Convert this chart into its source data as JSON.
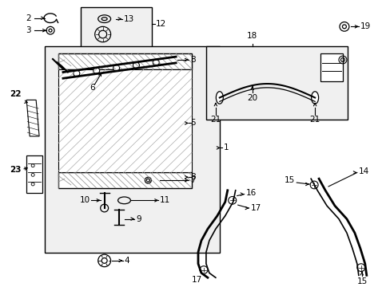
{
  "bg_color": "#ffffff",
  "line_color": "#000000",
  "gray_fill": "#e8e8e8",
  "light_gray": "#f0f0f0"
}
